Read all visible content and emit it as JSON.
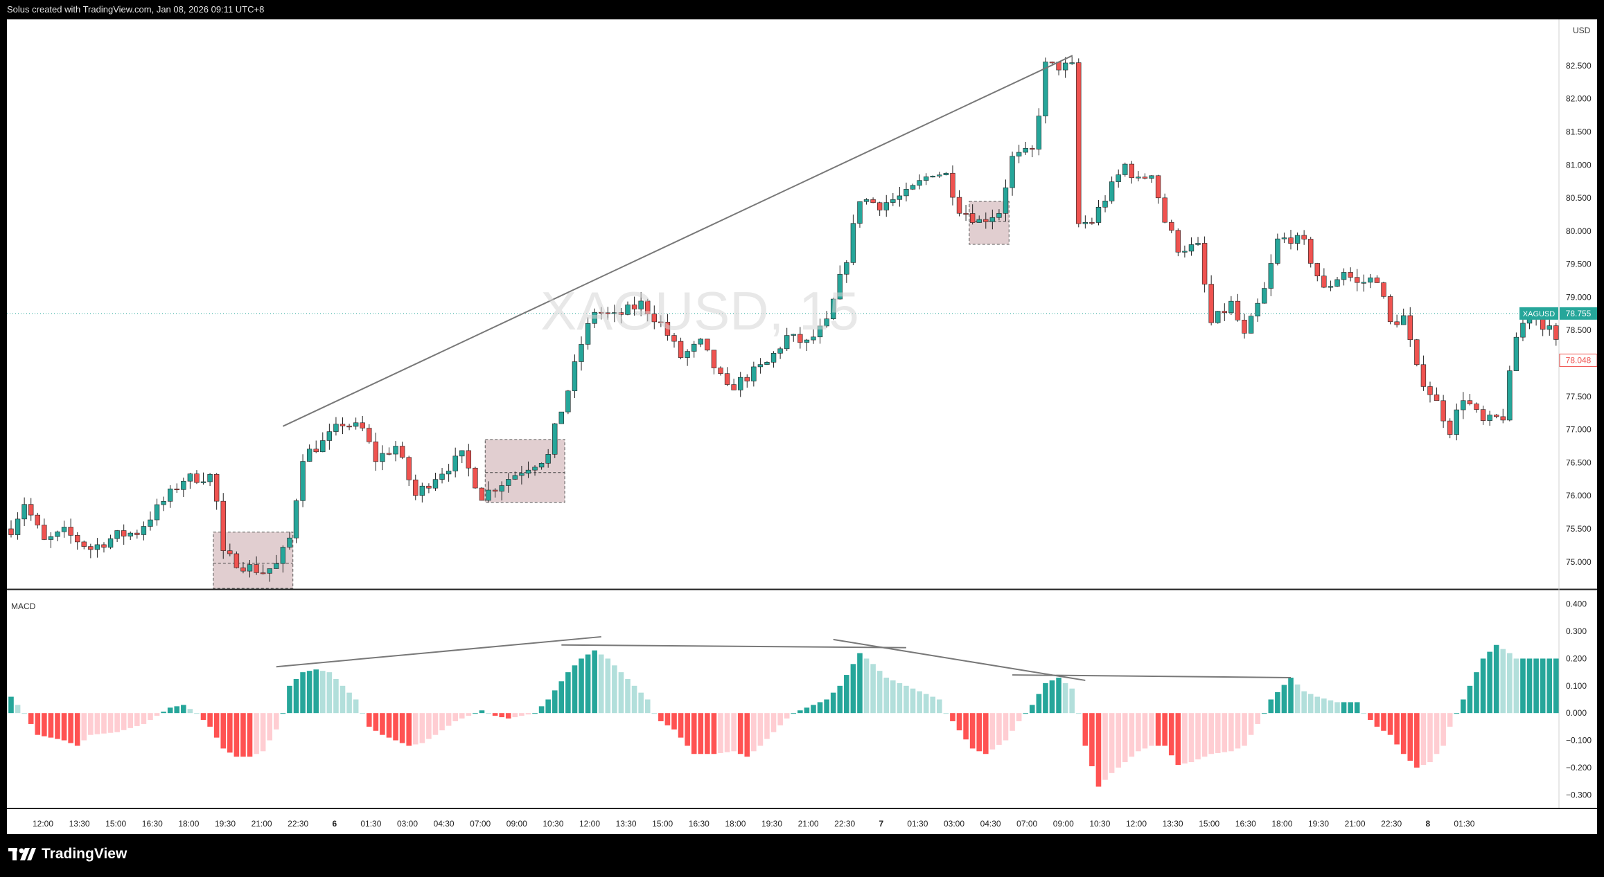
{
  "header": {
    "caption": "Solus created with TradingView.com, Jan 08, 2026 09:11 UTC+8"
  },
  "footer": {
    "brand": "TradingView"
  },
  "colors": {
    "up": "#26a69a",
    "down": "#ef5350",
    "hist_up_strong": "#26a69a",
    "hist_up_weak": "#b2dfdb",
    "hist_down_strong": "#ff5252",
    "hist_down_weak": "#ffcdd2",
    "last_price": "#26a69a",
    "marked_price": "#ef5350",
    "zone": "#c9a5aa"
  },
  "chart_data": [
    {
      "type": "candlestick",
      "symbol": "XAGUSD",
      "timeframe": "15",
      "watermark": "XAGUSD, 15",
      "currency": "USD",
      "ylim": [
        74.6,
        83.2
      ],
      "y_ticks": [
        "75.000",
        "75.500",
        "76.000",
        "76.500",
        "77.000",
        "77.500",
        "78.000",
        "78.500",
        "79.000",
        "79.500",
        "80.000",
        "80.500",
        "81.000",
        "81.500",
        "82.000",
        "82.500"
      ],
      "x_ticks": [
        "12:00",
        "13:30",
        "15:00",
        "16:30",
        "18:00",
        "19:30",
        "21:00",
        "22:30",
        "6",
        "01:30",
        "03:00",
        "04:30",
        "07:00",
        "09:00",
        "10:30",
        "12:00",
        "13:30",
        "15:00",
        "16:30",
        "18:00",
        "19:30",
        "21:00",
        "22:30",
        "7",
        "01:30",
        "03:00",
        "04:30",
        "07:00",
        "09:00",
        "10:30",
        "12:00",
        "13:30",
        "15:00",
        "16:30",
        "18:00",
        "19:30",
        "21:00",
        "22:30",
        "8",
        "01:30"
      ],
      "last_price": {
        "symbol": "XAGUSD",
        "value": "78.755"
      },
      "marked_price": {
        "value": "78.048"
      },
      "path_anchors": [
        [
          0,
          75.5
        ],
        [
          2,
          75.9
        ],
        [
          5,
          75.3
        ],
        [
          8,
          75.45
        ],
        [
          12,
          75.2
        ],
        [
          16,
          75.4
        ],
        [
          19,
          75.45
        ],
        [
          22,
          75.8
        ],
        [
          26,
          76.25
        ],
        [
          30,
          76.3
        ],
        [
          31,
          75.9
        ],
        [
          32,
          75.1
        ],
        [
          35,
          74.95
        ],
        [
          38,
          74.85
        ],
        [
          40,
          74.95
        ],
        [
          42,
          75.35
        ],
        [
          44,
          76.6
        ],
        [
          47,
          76.8
        ],
        [
          50,
          77.1
        ],
        [
          53,
          77.0
        ],
        [
          55,
          76.55
        ],
        [
          58,
          76.75
        ],
        [
          61,
          76.0
        ],
        [
          64,
          76.3
        ],
        [
          68,
          76.6
        ],
        [
          71,
          76.0
        ],
        [
          74,
          76.2
        ],
        [
          78,
          76.45
        ],
        [
          81,
          76.6
        ],
        [
          82,
          77.0
        ],
        [
          84,
          77.6
        ],
        [
          86,
          78.3
        ],
        [
          88,
          78.8
        ],
        [
          91,
          78.7
        ],
        [
          95,
          78.9
        ],
        [
          98,
          78.6
        ],
        [
          101,
          78.1
        ],
        [
          104,
          78.3
        ],
        [
          108,
          77.6
        ],
        [
          111,
          77.8
        ],
        [
          114,
          78.0
        ],
        [
          117,
          78.4
        ],
        [
          120,
          78.3
        ],
        [
          123,
          78.6
        ],
        [
          126,
          79.6
        ],
        [
          128,
          80.5
        ],
        [
          131,
          80.4
        ],
        [
          135,
          80.55
        ],
        [
          139,
          80.9
        ],
        [
          141,
          80.85
        ],
        [
          143,
          80.35
        ],
        [
          146,
          80.15
        ],
        [
          149,
          80.3
        ],
        [
          151,
          81.1
        ],
        [
          154,
          81.2
        ],
        [
          155,
          81.8
        ],
        [
          156,
          82.5
        ],
        [
          160,
          82.48
        ],
        [
          161,
          80.1
        ],
        [
          163,
          80.15
        ],
        [
          165,
          80.5
        ],
        [
          168,
          81.0
        ],
        [
          170,
          80.75
        ],
        [
          172,
          80.9
        ],
        [
          174,
          80.15
        ],
        [
          176,
          79.75
        ],
        [
          179,
          79.75
        ],
        [
          181,
          78.6
        ],
        [
          184,
          78.9
        ],
        [
          186,
          78.4
        ],
        [
          189,
          79.1
        ],
        [
          191,
          79.85
        ],
        [
          193,
          79.9
        ],
        [
          195,
          79.8
        ],
        [
          198,
          79.1
        ],
        [
          201,
          79.4
        ],
        [
          203,
          79.2
        ],
        [
          206,
          79.3
        ],
        [
          208,
          78.6
        ],
        [
          210,
          78.7
        ],
        [
          212,
          77.9
        ],
        [
          215,
          77.4
        ],
        [
          217,
          77.0
        ],
        [
          219,
          77.5
        ],
        [
          222,
          77.1
        ],
        [
          225,
          77.2
        ],
        [
          227,
          78.4
        ],
        [
          229,
          78.8
        ],
        [
          232,
          78.5
        ],
        [
          233,
          78.3
        ]
      ],
      "annotations": [
        {
          "kind": "trendline",
          "from": [
            41,
            77.05
          ],
          "to": [
            160,
            82.65
          ]
        },
        {
          "kind": "zone",
          "x": [
            30.5,
            42.5
          ],
          "y": [
            74.6,
            75.45
          ],
          "mid": 74.98
        },
        {
          "kind": "zone",
          "x": [
            71.5,
            83.5
          ],
          "y": [
            75.9,
            76.85
          ],
          "mid": 76.35
        },
        {
          "kind": "zone",
          "x": [
            144.5,
            150.5
          ],
          "y": [
            79.8,
            80.45
          ],
          "mid": 80.15
        }
      ]
    },
    {
      "type": "histogram",
      "title": "MACD",
      "ylim": [
        -0.35,
        0.45
      ],
      "y_ticks": [
        "0.400",
        "0.300",
        "0.200",
        "0.100",
        "0.000",
        "−0.100",
        "−0.200",
        "−0.300"
      ],
      "path_anchors": [
        [
          0,
          0.06
        ],
        [
          2,
          0.0
        ],
        [
          4,
          -0.08
        ],
        [
          8,
          -0.1
        ],
        [
          10,
          -0.12
        ],
        [
          12,
          -0.08
        ],
        [
          16,
          -0.07
        ],
        [
          20,
          -0.04
        ],
        [
          24,
          0.02
        ],
        [
          26,
          0.03
        ],
        [
          28,
          0.0
        ],
        [
          30,
          -0.05
        ],
        [
          32,
          -0.13
        ],
        [
          34,
          -0.16
        ],
        [
          36,
          -0.16
        ],
        [
          38,
          -0.14
        ],
        [
          40,
          -0.06
        ],
        [
          41,
          0.0
        ],
        [
          42,
          0.1
        ],
        [
          44,
          0.15
        ],
        [
          46,
          0.16
        ],
        [
          48,
          0.15
        ],
        [
          50,
          0.1
        ],
        [
          52,
          0.05
        ],
        [
          53,
          0.0
        ],
        [
          54,
          -0.05
        ],
        [
          56,
          -0.08
        ],
        [
          58,
          -0.1
        ],
        [
          60,
          -0.12
        ],
        [
          62,
          -0.11
        ],
        [
          64,
          -0.08
        ],
        [
          67,
          -0.03
        ],
        [
          69,
          -0.01
        ],
        [
          71,
          0.01
        ],
        [
          73,
          -0.01
        ],
        [
          75,
          -0.02
        ],
        [
          77,
          -0.01
        ],
        [
          79,
          0.0
        ],
        [
          81,
          0.05
        ],
        [
          84,
          0.15
        ],
        [
          86,
          0.2
        ],
        [
          88,
          0.23
        ],
        [
          90,
          0.2
        ],
        [
          92,
          0.15
        ],
        [
          94,
          0.1
        ],
        [
          96,
          0.05
        ],
        [
          97,
          0.0
        ],
        [
          98,
          -0.03
        ],
        [
          100,
          -0.06
        ],
        [
          103,
          -0.15
        ],
        [
          106,
          -0.15
        ],
        [
          109,
          -0.14
        ],
        [
          111,
          -0.16
        ],
        [
          113,
          -0.12
        ],
        [
          115,
          -0.07
        ],
        [
          117,
          -0.02
        ],
        [
          118,
          0.0
        ],
        [
          120,
          0.02
        ],
        [
          123,
          0.05
        ],
        [
          125,
          0.1
        ],
        [
          128,
          0.22
        ],
        [
          130,
          0.18
        ],
        [
          132,
          0.13
        ],
        [
          135,
          0.1
        ],
        [
          138,
          0.07
        ],
        [
          140,
          0.05
        ],
        [
          141,
          0.0
        ],
        [
          142,
          -0.03
        ],
        [
          145,
          -0.13
        ],
        [
          147,
          -0.15
        ],
        [
          150,
          -0.1
        ],
        [
          152,
          -0.03
        ],
        [
          153,
          0.0
        ],
        [
          154,
          0.03
        ],
        [
          156,
          0.11
        ],
        [
          158,
          0.13
        ],
        [
          160,
          0.09
        ],
        [
          161,
          0.0
        ],
        [
          162,
          -0.12
        ],
        [
          164,
          -0.27
        ],
        [
          166,
          -0.22
        ],
        [
          168,
          -0.18
        ],
        [
          170,
          -0.14
        ],
        [
          172,
          -0.12
        ],
        [
          174,
          -0.12
        ],
        [
          176,
          -0.19
        ],
        [
          178,
          -0.18
        ],
        [
          181,
          -0.15
        ],
        [
          184,
          -0.14
        ],
        [
          186,
          -0.12
        ],
        [
          188,
          -0.04
        ],
        [
          189,
          0.0
        ],
        [
          190,
          0.05
        ],
        [
          193,
          0.13
        ],
        [
          195,
          0.08
        ],
        [
          197,
          0.06
        ],
        [
          200,
          0.04
        ],
        [
          203,
          0.04
        ],
        [
          204,
          0.0
        ],
        [
          206,
          -0.05
        ],
        [
          208,
          -0.08
        ],
        [
          210,
          -0.15
        ],
        [
          212,
          -0.2
        ],
        [
          214,
          -0.18
        ],
        [
          216,
          -0.12
        ],
        [
          217,
          -0.05
        ],
        [
          218,
          0.0
        ],
        [
          220,
          0.1
        ],
        [
          222,
          0.2
        ],
        [
          224,
          0.25
        ],
        [
          226,
          0.22
        ],
        [
          227,
          0.2
        ]
      ],
      "annotations": [
        {
          "kind": "trendline",
          "from": [
            40,
            0.17
          ],
          "to": [
            89,
            0.28
          ]
        },
        {
          "kind": "trendline",
          "from": [
            83,
            0.25
          ],
          "to": [
            135,
            0.24
          ]
        },
        {
          "kind": "trendline",
          "from": [
            124,
            0.27
          ],
          "to": [
            162,
            0.12
          ]
        },
        {
          "kind": "trendline",
          "from": [
            151,
            0.14
          ],
          "to": [
            193,
            0.13
          ]
        }
      ]
    }
  ]
}
